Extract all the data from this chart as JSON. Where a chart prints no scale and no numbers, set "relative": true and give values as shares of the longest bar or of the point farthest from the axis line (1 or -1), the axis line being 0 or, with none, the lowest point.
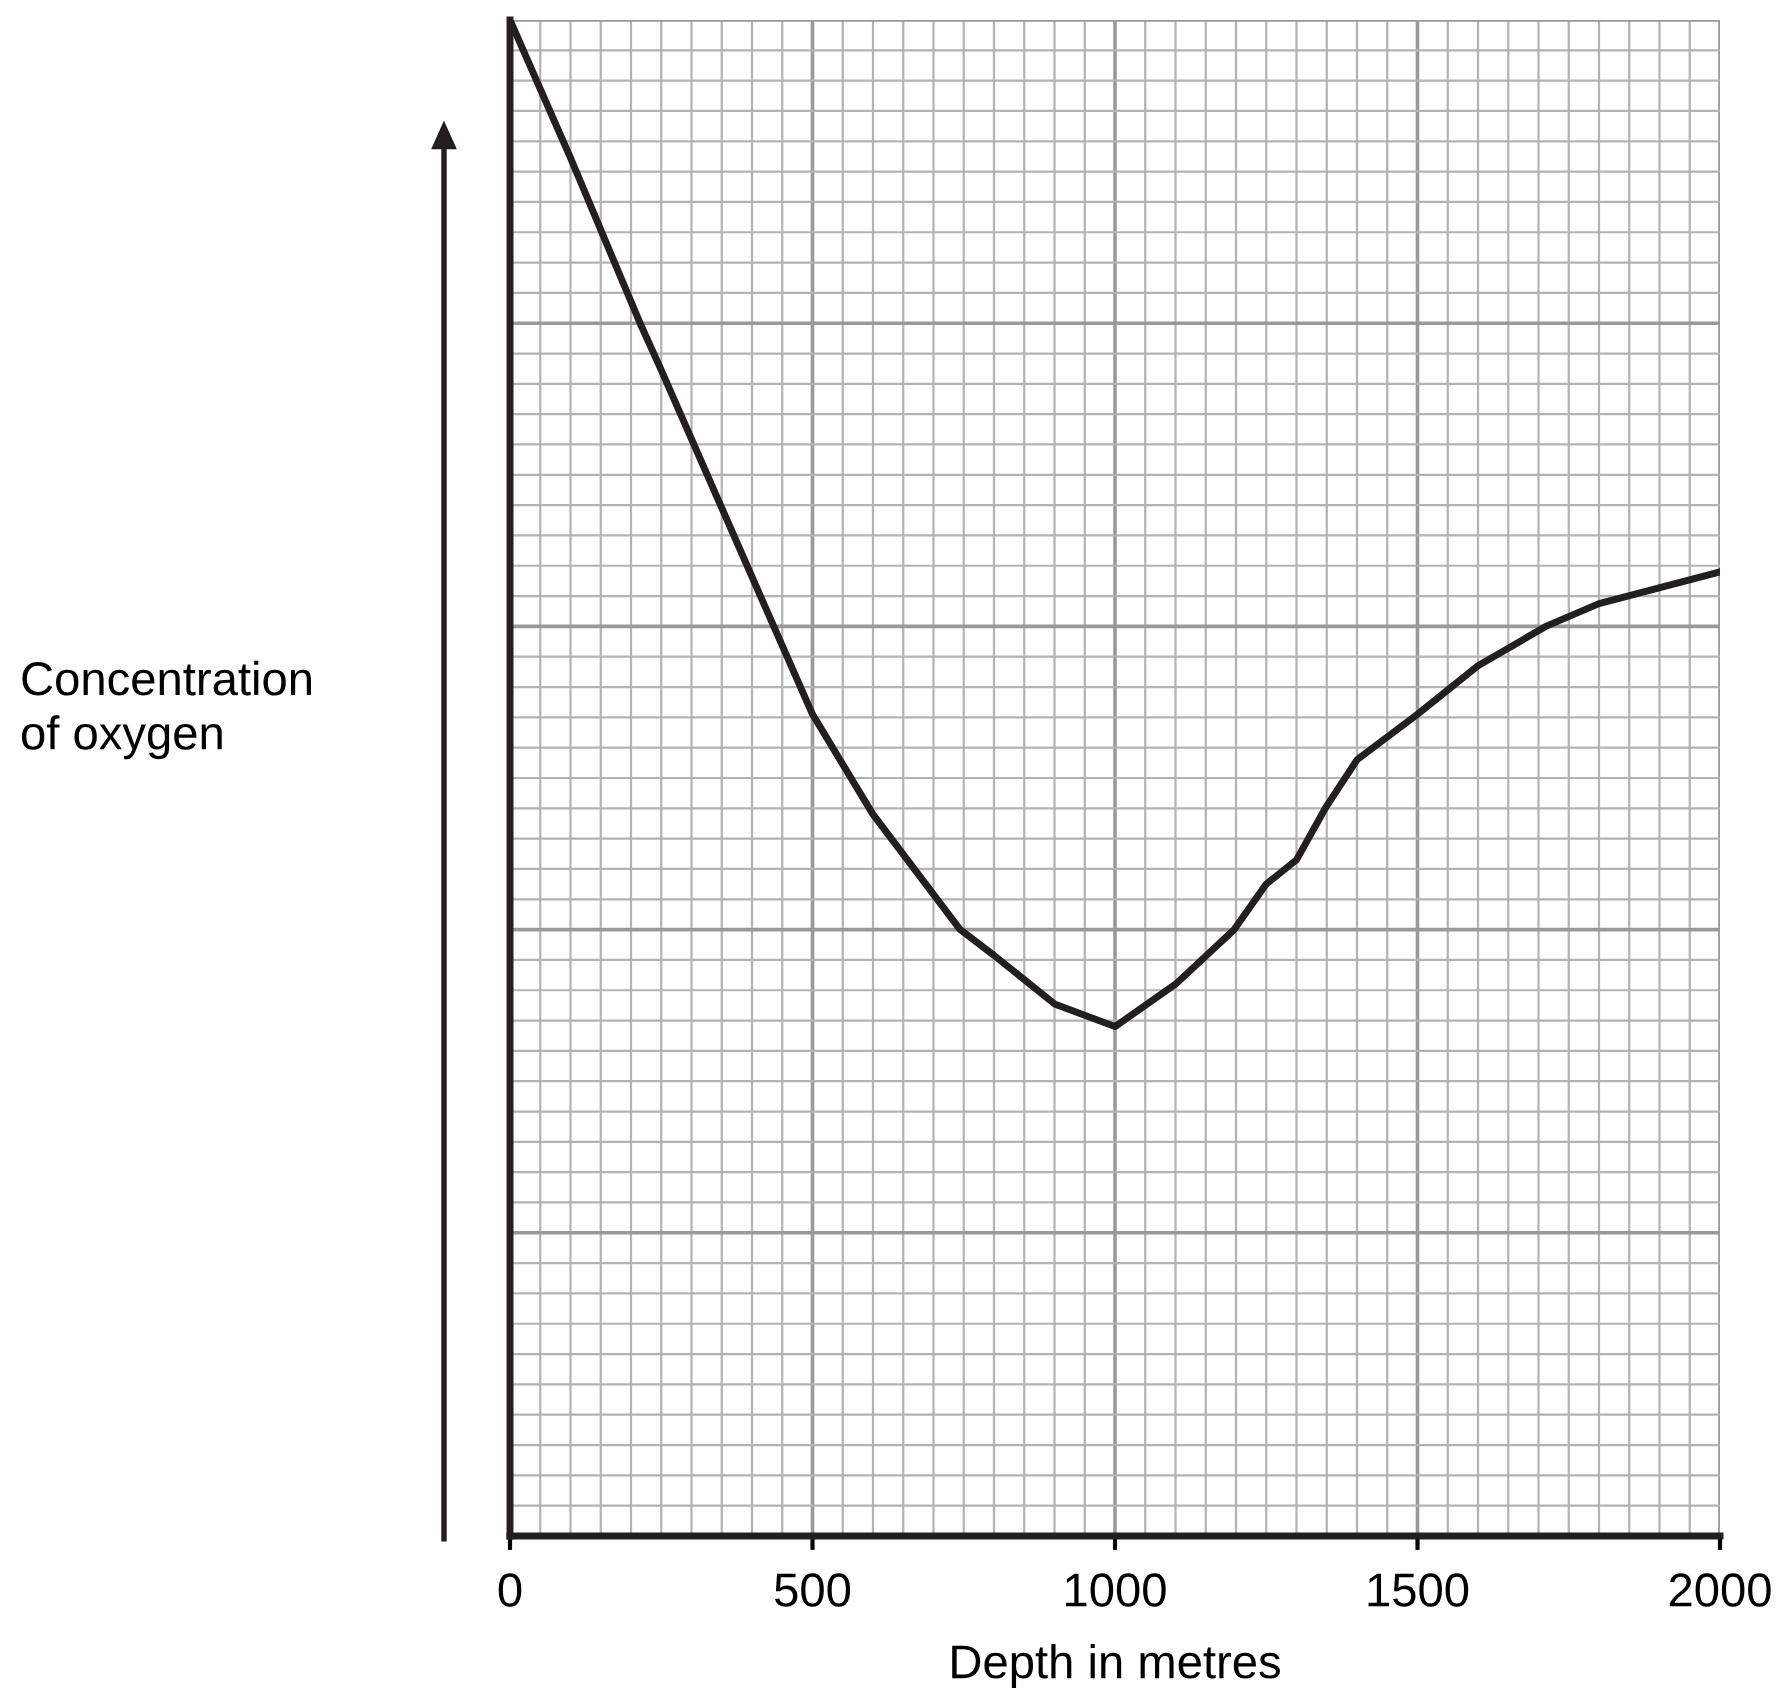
{
  "chart_data": {
    "type": "line",
    "xlabel": "Depth in metres",
    "ylabel": "Concentration\nof oxygen",
    "relative": true,
    "x": [
      0,
      100,
      215,
      250,
      436,
      500,
      600,
      744,
      800,
      900,
      1000,
      1100,
      1197,
      1250,
      1300,
      1349,
      1400,
      1500,
      1600,
      1712,
      1800,
      2000
    ],
    "series": [
      {
        "color": "#231f20",
        "values": [
          1.0,
          0.909,
          0.8,
          0.769,
          0.6,
          0.542,
          0.476,
          0.4,
          0.383,
          0.351,
          0.336,
          0.364,
          0.4,
          0.43,
          0.446,
          0.481,
          0.512,
          0.542,
          0.574,
          0.6,
          0.615,
          0.636
        ]
      }
    ],
    "xlim": [
      0,
      2000
    ],
    "xticks": [
      0,
      500,
      1000,
      1500,
      2000
    ],
    "grid": true,
    "marker": "none",
    "line_style": "solid"
  }
}
